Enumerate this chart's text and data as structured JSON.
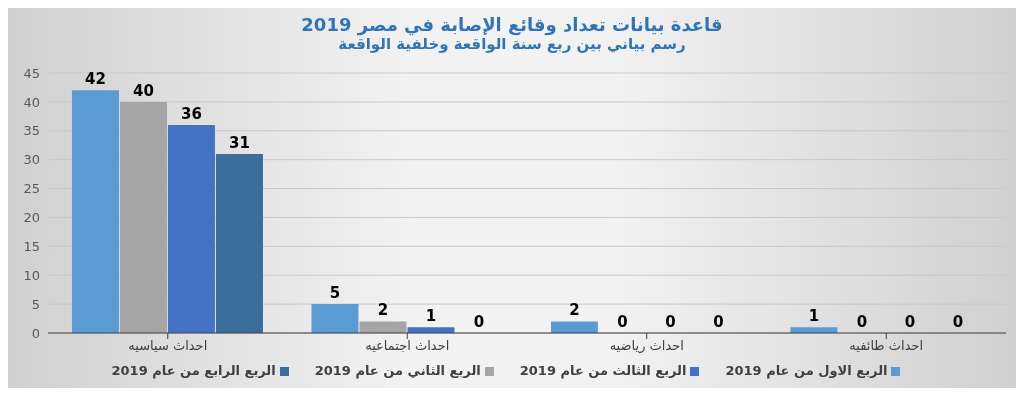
{
  "chart_data": {
    "type": "bar",
    "title": "قاعدة بيانات تعداد وقائع الإصابة في مصر 2019",
    "subtitle": "رسم بياني بين ربع سنة الواقعة وخلفية الواقعة",
    "categories": [
      "احداث سياسيه",
      "احداث اجتماعيه",
      "احداث رياضيه",
      "احداث طائفيه"
    ],
    "series": [
      {
        "name": "الربع الاول من عام 2019",
        "color": "#5b9bd5",
        "values": [
          42,
          5,
          2,
          1
        ]
      },
      {
        "name": "الربع الثاني من عام 2019",
        "color": "#a5a5a5",
        "values": [
          40,
          2,
          0,
          0
        ]
      },
      {
        "name": "الربع الثالث من عام 2019",
        "color": "#4472c4",
        "values": [
          36,
          1,
          0,
          0
        ]
      },
      {
        "name": "الربع الرابع من عام 2019",
        "color": "#3a6f9d",
        "values": [
          31,
          0,
          0,
          0
        ]
      }
    ],
    "ylim": [
      0,
      45
    ],
    "yticks": [
      0,
      5,
      10,
      15,
      20,
      25,
      30,
      35,
      40,
      45
    ],
    "grid": "y",
    "legend": "bottom",
    "data_labels": true
  }
}
